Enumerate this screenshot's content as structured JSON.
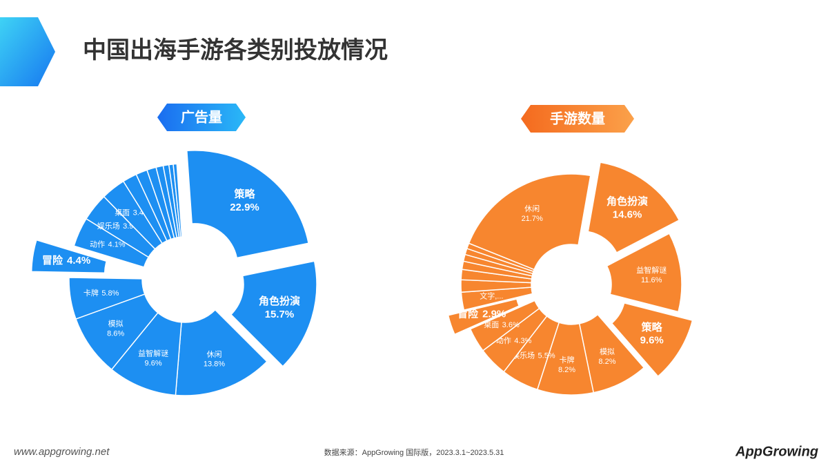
{
  "header": {
    "title": "中国出海手游各类别投放情况"
  },
  "chart_data": [
    {
      "type": "pie",
      "title": "广告量",
      "color": "#1d8ff2",
      "categories": [
        "策略",
        "角色扮演",
        "休闲",
        "益智解谜",
        "模拟",
        "卡牌",
        "冒险",
        "动作",
        "娱乐场",
        "桌面",
        null,
        null,
        null,
        null,
        null,
        null,
        null
      ],
      "values": [
        22.9,
        15.7,
        13.8,
        9.6,
        8.6,
        5.8,
        4.4,
        4.1,
        3.9,
        3.4,
        2.0,
        1.6,
        1.3,
        1.0,
        0.8,
        0.6,
        0.5
      ],
      "value_labels": [
        "22.9%",
        "15.7%",
        "13.8%",
        "9.6%",
        "8.6%",
        "5.8%",
        "4.4%",
        "4.1%",
        "3.9%",
        "3.4%",
        null,
        null,
        null,
        null,
        null,
        null,
        null
      ],
      "exploded": [
        true,
        true,
        false,
        false,
        false,
        false,
        true,
        false,
        false,
        false,
        false,
        false,
        false,
        false,
        false,
        false,
        false
      ]
    },
    {
      "type": "pie",
      "title": "手游数量",
      "color": "#f7862f",
      "categories": [
        "角色扮演",
        "益智解谜",
        "策略",
        "模拟",
        "卡牌",
        "娱乐场",
        "动作",
        "桌面",
        "冒险",
        "文字,...",
        null,
        null,
        null,
        null,
        null,
        null,
        "休闲"
      ],
      "values": [
        14.6,
        11.6,
        9.6,
        8.2,
        8.2,
        5.5,
        4.3,
        3.6,
        2.9,
        2.6,
        1.8,
        1.5,
        1.2,
        1.0,
        0.9,
        0.8,
        21.7
      ],
      "value_labels": [
        "14.6%",
        "11.6%",
        "9.6%",
        "8.2%",
        "8.2%",
        "5.5%",
        "4.3%",
        "3.6%",
        "2.9%",
        null,
        null,
        null,
        null,
        null,
        null,
        null,
        "21.7%"
      ],
      "exploded": [
        true,
        false,
        true,
        false,
        false,
        false,
        false,
        false,
        true,
        false,
        false,
        false,
        false,
        false,
        false,
        false,
        false
      ]
    }
  ],
  "footer": {
    "website": "www.appgrowing.net",
    "source": "数据来源：AppGrowing 国际版，2023.3.1~2023.5.31",
    "logo": "AppGrowing"
  }
}
